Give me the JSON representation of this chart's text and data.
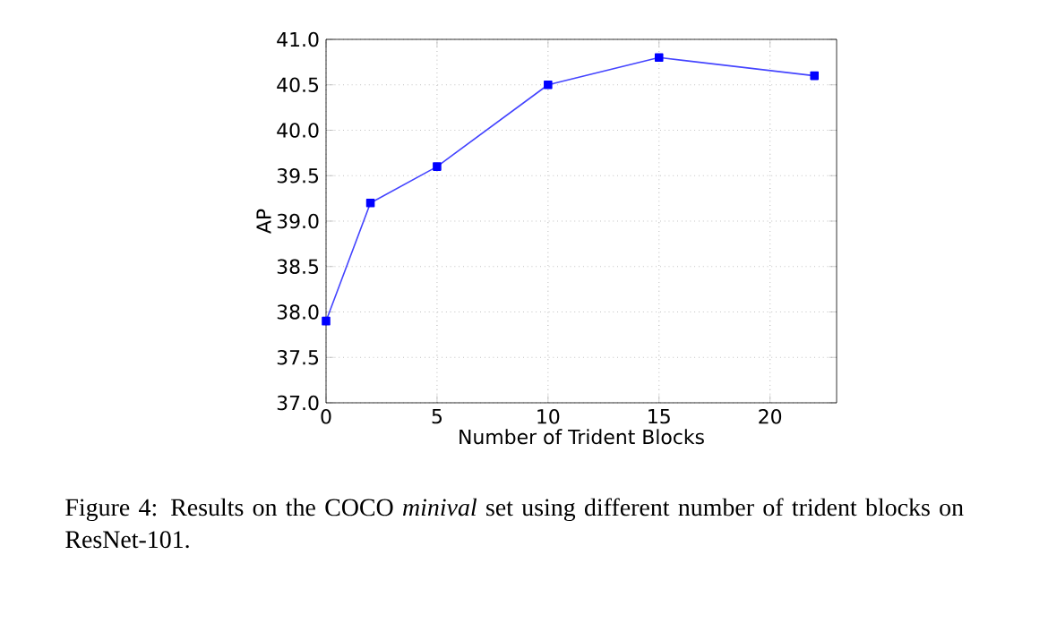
{
  "chart_data": {
    "type": "line",
    "xlabel": "Number of Trident Blocks",
    "ylabel": "AP",
    "x": [
      0,
      2,
      5,
      10,
      15,
      22
    ],
    "values": [
      37.9,
      39.2,
      39.6,
      40.5,
      40.8,
      40.6
    ],
    "color": "#4444ff",
    "marker": "square",
    "line_style": "solid",
    "grid": true,
    "xlim": [
      0,
      23
    ],
    "xticks": [
      0,
      5,
      10,
      15,
      20
    ],
    "ylim": [
      37.0,
      41.0
    ],
    "yticks": [
      {
        "value": 37.0,
        "label": "37.0"
      },
      {
        "value": 37.5,
        "label": "37.5"
      },
      {
        "value": 38.0,
        "label": "38.0"
      },
      {
        "value": 38.5,
        "label": "38.5"
      },
      {
        "value": 39.0,
        "label": "39.0"
      },
      {
        "value": 39.5,
        "label": "39.5"
      },
      {
        "value": 40.0,
        "label": "40.0"
      },
      {
        "value": 40.5,
        "label": "40.5"
      },
      {
        "value": 41.0,
        "label": "41.0"
      }
    ],
    "annotations": [
      "Figure 4: Results on the COCO *minival* set using different number of trident blocks on ResNet-101."
    ]
  }
}
